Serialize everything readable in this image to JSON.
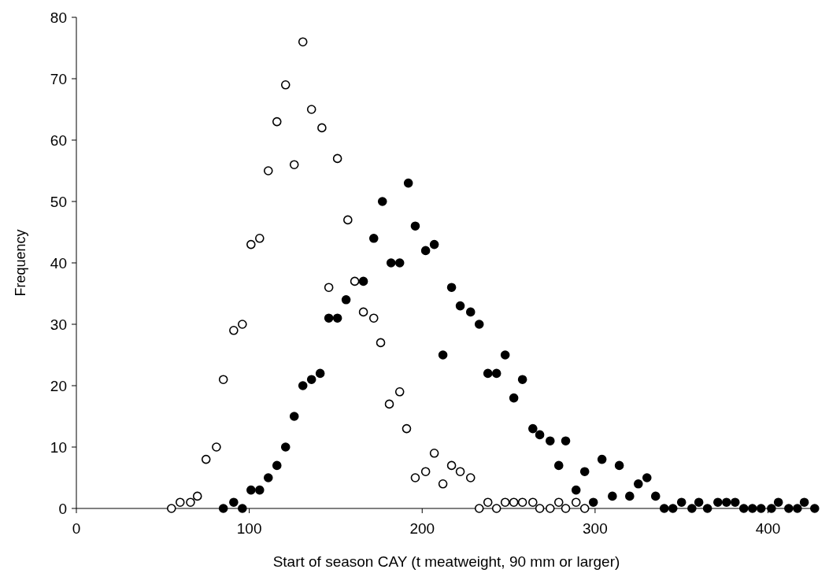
{
  "chart_data": {
    "type": "scatter",
    "xlabel": "Start of season CAY (t meatweight, 90 mm or larger)",
    "ylabel": "Frequency",
    "xlim": [
      0,
      428
    ],
    "ylim": [
      0,
      80
    ],
    "xticks": [
      0,
      100,
      200,
      300,
      400
    ],
    "yticks": [
      0,
      10,
      20,
      30,
      40,
      50,
      60,
      70,
      80
    ],
    "marker": "circle",
    "series": [
      {
        "color": "#ffffff",
        "x": [
          55,
          60,
          66,
          70,
          75,
          81,
          85,
          91,
          96,
          101,
          106,
          111,
          116,
          121,
          126,
          131,
          136,
          142,
          146,
          151,
          157,
          161,
          166,
          172,
          176,
          181,
          187,
          191,
          196,
          202,
          207,
          212,
          217,
          222,
          228,
          233,
          238,
          243,
          248,
          253,
          258,
          264,
          268,
          274,
          279,
          283,
          289,
          294
        ],
        "values": [
          0,
          1,
          1,
          2,
          8,
          10,
          21,
          29,
          30,
          43,
          44,
          55,
          63,
          69,
          56,
          76,
          65,
          62,
          36,
          57,
          47,
          37,
          32,
          31,
          27,
          17,
          19,
          13,
          5,
          6,
          9,
          4,
          7,
          6,
          5,
          0,
          1,
          0,
          1,
          1,
          1,
          1,
          0,
          0,
          1,
          0,
          1,
          0
        ]
      },
      {
        "color": "#000000",
        "x": [
          85,
          91,
          96,
          101,
          106,
          111,
          116,
          121,
          126,
          131,
          136,
          141,
          146,
          151,
          156,
          166,
          172,
          177,
          182,
          187,
          192,
          196,
          202,
          207,
          212,
          217,
          222,
          228,
          233,
          238,
          243,
          248,
          253,
          258,
          264,
          268,
          274,
          279,
          283,
          289,
          294,
          299,
          304,
          310,
          314,
          320,
          325,
          330,
          335,
          340,
          345,
          350,
          356,
          360,
          365,
          371,
          376,
          381,
          386,
          391,
          396,
          402,
          406,
          412,
          417,
          421,
          427
        ],
        "values": [
          0,
          1,
          0,
          3,
          3,
          5,
          7,
          10,
          15,
          20,
          21,
          22,
          31,
          31,
          34,
          37,
          44,
          50,
          40,
          40,
          53,
          46,
          42,
          43,
          25,
          36,
          33,
          32,
          30,
          22,
          22,
          25,
          18,
          21,
          13,
          12,
          11,
          7,
          11,
          3,
          6,
          1,
          8,
          2,
          7,
          2,
          4,
          5,
          2,
          0,
          0,
          1,
          0,
          1,
          0,
          1,
          1,
          1,
          0,
          0,
          0,
          0,
          1,
          0,
          0,
          1,
          0
        ]
      }
    ]
  }
}
